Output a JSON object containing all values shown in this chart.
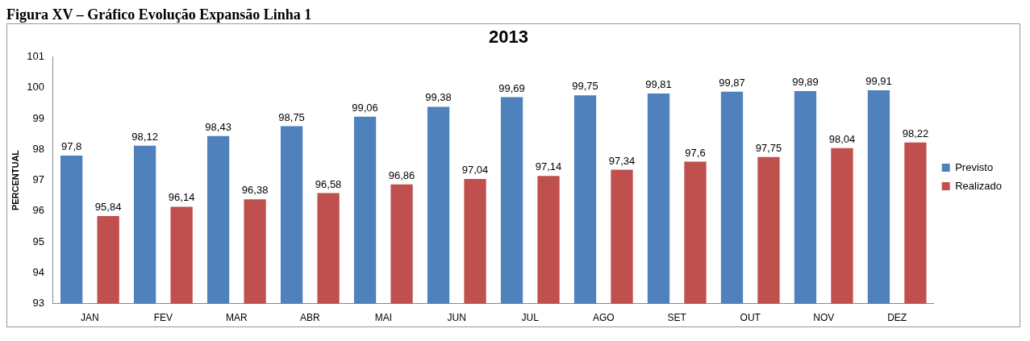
{
  "chart_data": {
    "type": "bar",
    "title": "2013",
    "ylabel": "PERCENTUAL",
    "annotations": [
      "Figura XV – Gráfico Evolução Expansão Linha 1"
    ],
    "categories": [
      "JAN",
      "FEV",
      "MAR",
      "ABR",
      "MAI",
      "JUN",
      "JUL",
      "AGO",
      "SET",
      "OUT",
      "NOV",
      "DEZ"
    ],
    "series": [
      {
        "name": "Previsto",
        "color": "#4f81bd",
        "values": [
          97.8,
          98.12,
          98.43,
          98.75,
          99.06,
          99.38,
          99.69,
          99.75,
          99.81,
          99.87,
          99.89,
          99.91
        ],
        "value_labels": [
          "97,8",
          "98,12",
          "98,43",
          "98,75",
          "99,06",
          "99,38",
          "99,69",
          "99,75",
          "99,81",
          "99,87",
          "99,89",
          "99,91"
        ]
      },
      {
        "name": "Realizado",
        "color": "#c0504d",
        "values": [
          95.84,
          96.14,
          96.38,
          96.58,
          96.86,
          97.04,
          97.14,
          97.34,
          97.6,
          97.75,
          98.04,
          98.22
        ],
        "value_labels": [
          "95,84",
          "96,14",
          "96,38",
          "96,58",
          "96,86",
          "97,04",
          "97,14",
          "97,34",
          "97,6",
          "97,75",
          "98,04",
          "98,22"
        ]
      }
    ],
    "ylim": [
      93,
      101
    ],
    "yticks": [
      93,
      94,
      95,
      96,
      97,
      98,
      99,
      100,
      101
    ],
    "grid": false,
    "legend": "right"
  }
}
